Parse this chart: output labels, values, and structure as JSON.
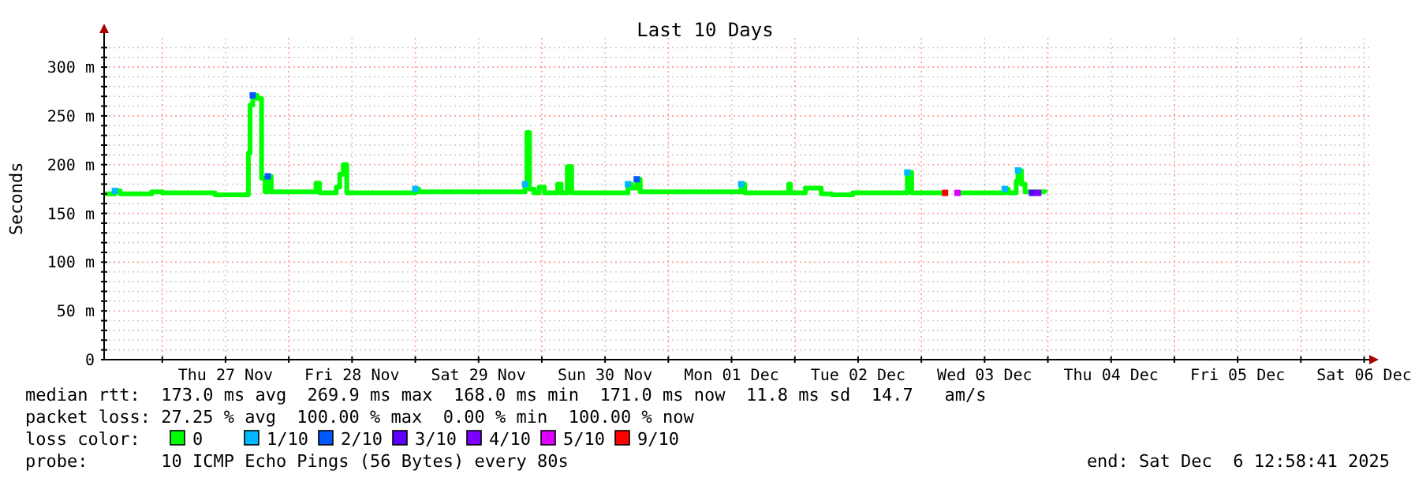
{
  "chart_data": {
    "type": "step",
    "title": "Last 10 Days",
    "ylabel": "Seconds",
    "legend_title": "loss color:",
    "legend": "bottom",
    "grid": true,
    "line_style": "solid",
    "annotations": [
      "median rtt:  173.0 ms avg  269.9 ms max  168.0 ms min  171.0 ms now  11.8 ms sd  14.7   am/s",
      "packet loss: 27.25 % avg  100.00 % max  0.00 % min  100.00 % now",
      "probe:       10 ICMP Echo Pings (56 Bytes) every 80s",
      "end: Sat Dec  6 12:58:41 2025"
    ],
    "xlim": [
      "2025-11-26T12:58",
      "2025-12-06T12:58"
    ],
    "xticks": [
      {
        "value": "2025-11-27T00:00",
        "label": null
      },
      {
        "value": "2025-11-27T12:00",
        "label": "Thu 27 Nov"
      },
      {
        "value": "2025-11-28T00:00",
        "label": null
      },
      {
        "value": "2025-11-28T12:00",
        "label": "Fri 28 Nov"
      },
      {
        "value": "2025-11-29T00:00",
        "label": null
      },
      {
        "value": "2025-11-29T12:00",
        "label": "Sat 29 Nov"
      },
      {
        "value": "2025-11-30T00:00",
        "label": null
      },
      {
        "value": "2025-11-30T12:00",
        "label": "Sun 30 Nov"
      },
      {
        "value": "2025-12-01T00:00",
        "label": null
      },
      {
        "value": "2025-12-01T12:00",
        "label": "Mon 01 Dec"
      },
      {
        "value": "2025-12-02T00:00",
        "label": null
      },
      {
        "value": "2025-12-02T12:00",
        "label": "Tue 02 Dec"
      },
      {
        "value": "2025-12-03T00:00",
        "label": null
      },
      {
        "value": "2025-12-03T12:00",
        "label": "Wed 03 Dec"
      },
      {
        "value": "2025-12-04T00:00",
        "label": null
      },
      {
        "value": "2025-12-04T12:00",
        "label": "Thu 04 Dec"
      },
      {
        "value": "2025-12-05T00:00",
        "label": null
      },
      {
        "value": "2025-12-05T12:00",
        "label": "Fri 05 Dec"
      },
      {
        "value": "2025-12-06T00:00",
        "label": null
      },
      {
        "value": "2025-12-06T12:00",
        "label": "Sat 06 Dec"
      }
    ],
    "ylim": [
      0,
      330
    ],
    "yticks": [
      0,
      {
        "value": 10,
        "label": null
      },
      {
        "value": 20,
        "label": null
      },
      {
        "value": 30,
        "label": null
      },
      {
        "value": 40,
        "label": null
      },
      {
        "value": 50,
        "label": "50 m"
      },
      {
        "value": 60,
        "label": null
      },
      {
        "value": 70,
        "label": null
      },
      {
        "value": 80,
        "label": null
      },
      {
        "value": 90,
        "label": null
      },
      {
        "value": 100,
        "label": "100 m"
      },
      {
        "value": 110,
        "label": null
      },
      {
        "value": 120,
        "label": null
      },
      {
        "value": 130,
        "label": null
      },
      {
        "value": 140,
        "label": null
      },
      {
        "value": 150,
        "label": "150 m"
      },
      {
        "value": 160,
        "label": null
      },
      {
        "value": 170,
        "label": null
      },
      {
        "value": 180,
        "label": null
      },
      {
        "value": 190,
        "label": null
      },
      {
        "value": 200,
        "label": "200 m"
      },
      {
        "value": 210,
        "label": null
      },
      {
        "value": 220,
        "label": null
      },
      {
        "value": 230,
        "label": null
      },
      {
        "value": 240,
        "label": null
      },
      {
        "value": 250,
        "label": "250 m"
      },
      {
        "value": 260,
        "label": null
      },
      {
        "value": 270,
        "label": null
      },
      {
        "value": 280,
        "label": null
      },
      {
        "value": 290,
        "label": null
      },
      {
        "value": 300,
        "label": "300 m"
      },
      {
        "value": 310,
        "label": null
      },
      {
        "value": 320,
        "label": null
      }
    ],
    "series": [
      {
        "name": "0",
        "color": "#00ff00",
        "x": [
          "2025-11-26T13:00",
          "2025-11-26T15:00",
          "2025-11-26T16:00",
          "2025-11-26T22:00",
          "2025-11-27T00:00",
          "2025-11-27T10:00",
          "2025-11-27T16:20",
          "2025-11-27T16:40",
          "2025-11-27T17:10",
          "2025-11-27T18:00",
          "2025-11-27T18:50",
          "2025-11-27T19:30",
          "2025-11-27T20:00",
          "2025-11-27T20:40",
          "2025-11-28T05:10",
          "2025-11-28T05:50",
          "2025-11-28T09:00",
          "2025-11-28T09:40",
          "2025-11-28T10:20",
          "2025-11-28T11:00",
          "2025-11-29T00:00",
          "2025-11-29T00:40",
          "2025-11-29T20:50",
          "2025-11-29T21:10",
          "2025-11-29T21:40",
          "2025-11-29T22:30",
          "2025-11-29T23:30",
          "2025-11-30T00:30",
          "2025-11-30T03:00",
          "2025-11-30T03:40",
          "2025-11-30T04:50",
          "2025-11-30T05:40",
          "2025-11-30T16:20",
          "2025-11-30T17:00",
          "2025-11-30T18:00",
          "2025-11-30T18:40",
          "2025-12-01T13:50",
          "2025-12-01T14:30",
          "2025-12-01T22:50",
          "2025-12-01T23:10",
          "2025-12-02T02:00",
          "2025-12-02T05:00",
          "2025-12-02T07:00",
          "2025-12-02T11:00",
          "2025-12-02T21:20",
          "2025-12-02T22:10",
          "2025-12-03T04:30",
          "2025-12-03T05:20",
          "2025-12-03T06:50",
          "2025-12-03T15:50",
          "2025-12-03T16:30",
          "2025-12-03T18:00",
          "2025-12-03T18:20",
          "2025-12-03T19:00",
          "2025-12-03T19:40",
          "2025-12-03T23:30"
        ],
        "values": [
          170,
          173,
          170,
          172,
          171,
          169,
          212,
          261,
          271,
          268,
          186,
          172,
          188,
          172,
          181,
          171,
          177,
          190,
          200,
          171,
          175,
          172,
          180,
          233,
          175,
          171,
          177,
          171,
          180,
          171,
          198,
          171,
          180,
          176,
          185,
          172,
          180,
          171,
          180,
          171,
          176,
          170,
          169,
          171,
          192,
          171,
          171,
          null,
          171,
          175,
          171,
          183,
          194,
          180,
          172,
          171
        ]
      },
      {
        "name": "1/10",
        "color": "#00b8ff",
        "type": "scatter",
        "marker": "square",
        "x": [
          "2025-11-26T15:00",
          "2025-11-29T00:00",
          "2025-11-29T20:50",
          "2025-11-30T16:20",
          "2025-12-01T13:50",
          "2025-12-02T21:20",
          "2025-12-03T15:50",
          "2025-12-03T18:20"
        ],
        "values": [
          173,
          175,
          180,
          180,
          180,
          192,
          175,
          194
        ]
      },
      {
        "name": "2/10",
        "color": "#0059ff",
        "type": "scatter",
        "marker": "square",
        "x": [
          "2025-11-27T17:10",
          "2025-11-27T20:00",
          "2025-11-30T18:00"
        ],
        "values": [
          271,
          188,
          185
        ]
      },
      {
        "name": "3/10",
        "color": "#5e00ff",
        "type": "scatter",
        "marker": "square",
        "x": [
          "2025-12-03T21:00"
        ],
        "values": [
          171
        ]
      },
      {
        "name": "4/10",
        "color": "#7e00ff",
        "type": "scatter",
        "marker": "square",
        "x": [
          "2025-12-03T22:10"
        ],
        "values": [
          171
        ]
      },
      {
        "name": "5/10",
        "color": "#dd00ff",
        "type": "scatter",
        "marker": "square",
        "x": [
          "2025-12-03T06:50"
        ],
        "values": [
          171
        ]
      },
      {
        "name": "9/10",
        "color": "#ff0000",
        "type": "scatter",
        "marker": "square",
        "x": [
          "2025-12-03T04:30"
        ],
        "values": [
          171
        ]
      }
    ]
  }
}
